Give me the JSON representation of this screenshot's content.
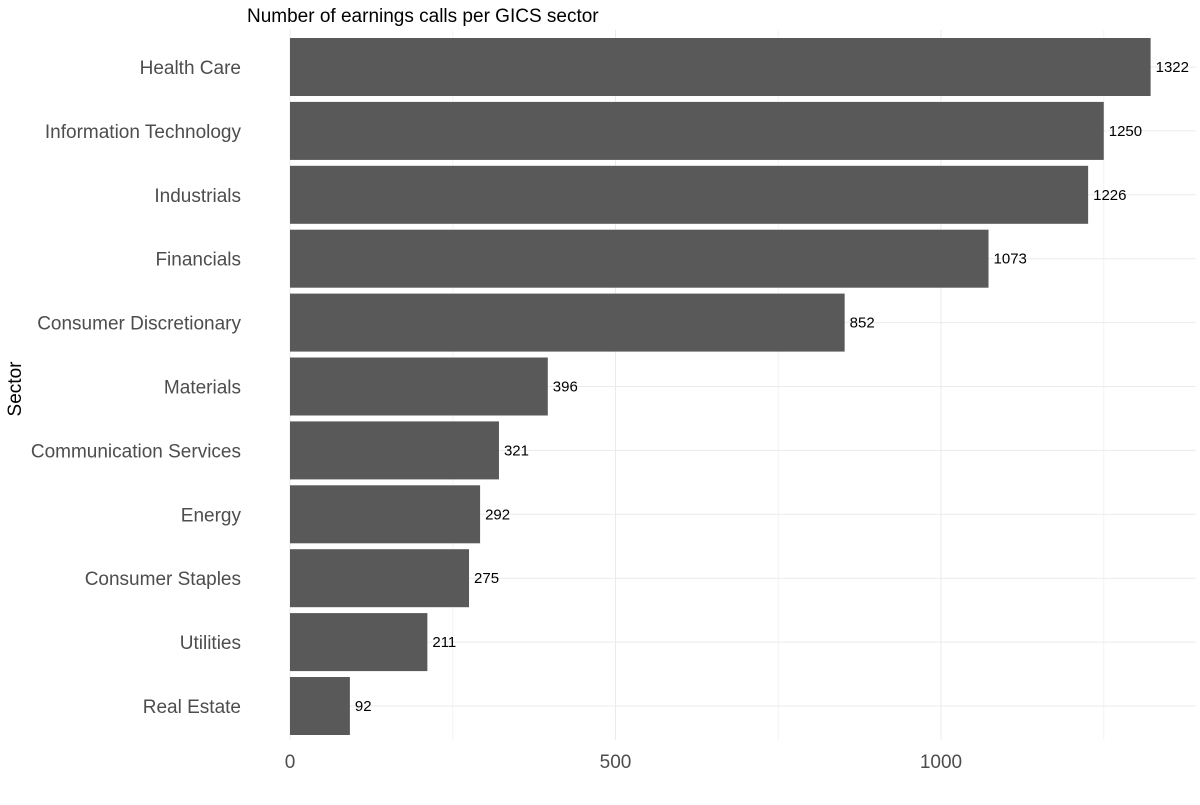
{
  "chart_data": {
    "type": "bar",
    "orientation": "horizontal",
    "title": "Number of earnings calls per GICS sector",
    "xlabel": "",
    "ylabel": "Sector",
    "categories": [
      "Health Care",
      "Information Technology",
      "Industrials",
      "Financials",
      "Consumer Discretionary",
      "Materials",
      "Communication Services",
      "Energy",
      "Consumer Staples",
      "Utilities",
      "Real Estate"
    ],
    "values": [
      1322,
      1250,
      1226,
      1073,
      852,
      396,
      321,
      292,
      275,
      211,
      92
    ],
    "data_labels": [
      "1322",
      "1250",
      "1226",
      "1073",
      "852",
      "396",
      "321",
      "292",
      "275",
      "211",
      "92"
    ],
    "xlim": [
      0,
      1390
    ],
    "xticks": [
      0,
      500,
      1000
    ],
    "xtick_labels": [
      "0",
      "500",
      "1000"
    ],
    "grid": true,
    "legend": "none",
    "colors": {
      "bar": "#595959",
      "grid": "#ebebeb",
      "axis_text": "#4d4d4d",
      "title_text": "#000000"
    }
  }
}
